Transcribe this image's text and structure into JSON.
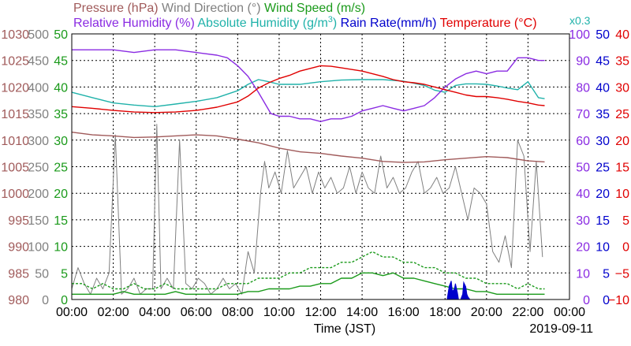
{
  "chart_data": {
    "type": "line",
    "title": {
      "parts": [
        {
          "text": "Pressure (hPa)",
          "color": "#a05a5a"
        },
        {
          "text": "Wind Direction (°)",
          "color": "#808080"
        },
        {
          "text": "Wind Speed (m/s)",
          "color": "#1a9a1a"
        }
      ],
      "parts2": [
        {
          "text": "Relative Humidity (%)",
          "color": "#8a2be2"
        },
        {
          "text": "Absolute Humidity (g/m",
          "color": "#20b2aa"
        },
        {
          "text": "3",
          "color": "#20b2aa",
          "sup": true
        },
        {
          "text": ")",
          "color": "#20b2aa"
        },
        {
          "text": "Rain Rate(mm/h)",
          "color": "#0000cc"
        },
        {
          "text": "Temperature (°C)",
          "color": "#e00000"
        }
      ],
      "multiplier": "x0.3",
      "multiplier_color": "#20b2aa"
    },
    "xlabel": "Time (JST)",
    "date": "2019-09-11",
    "x_ticks": [
      "00:00",
      "02:00",
      "04:00",
      "06:00",
      "08:00",
      "10:00",
      "12:00",
      "14:00",
      "16:00",
      "18:00",
      "20:00",
      "22:00",
      "00:00"
    ],
    "xlim": [
      0,
      24
    ],
    "grid": true,
    "left_axes": [
      {
        "name": "pressure",
        "color": "#a05a5a",
        "ticks": [
          "980",
          "985",
          "990",
          "995",
          "1000",
          "1005",
          "1010",
          "1015",
          "1020",
          "1025",
          "1030"
        ]
      },
      {
        "name": "wind_direction",
        "color": "#808080",
        "ticks": [
          "0",
          "50",
          "100",
          "150",
          "200",
          "250",
          "300",
          "350",
          "400",
          "450",
          "500"
        ]
      },
      {
        "name": "wind_speed",
        "color": "#1a9a1a",
        "ticks": [
          "0",
          "5",
          "10",
          "15",
          "20",
          "25",
          "30",
          "35",
          "40",
          "45",
          "50"
        ]
      }
    ],
    "right_axes": [
      {
        "name": "relative_humidity",
        "color": "#8a2be2",
        "ticks": [
          "0",
          "10",
          "20",
          "30",
          "40",
          "50",
          "60",
          "70",
          "80",
          "90",
          "100"
        ]
      },
      {
        "name": "rain_rate",
        "color": "#0000cc",
        "ticks": [
          "0",
          "5",
          "10",
          "15",
          "20",
          "25",
          "30",
          "35",
          "40",
          "45",
          "50"
        ]
      },
      {
        "name": "temperature",
        "color": "#e00000",
        "ticks": [
          "−10",
          "−5",
          "0",
          "5",
          "10",
          "15",
          "20",
          "25",
          "30",
          "35",
          "40"
        ]
      }
    ],
    "series": [
      {
        "name": "Pressure (hPa)",
        "color": "#a05a5a",
        "axis": "pressure",
        "ylim": [
          980,
          1030
        ],
        "x": [
          0,
          1,
          2,
          3,
          4,
          5,
          6,
          7,
          8,
          9,
          10,
          11,
          12,
          13,
          14,
          15,
          16,
          17,
          18,
          19,
          20,
          21,
          22,
          22.8
        ],
        "y": [
          1011.5,
          1011,
          1010.8,
          1010.5,
          1010.6,
          1010.8,
          1011,
          1010.8,
          1010.2,
          1009.5,
          1008.5,
          1007.8,
          1007.5,
          1007,
          1006.6,
          1006,
          1005.8,
          1005.9,
          1006.3,
          1006.6,
          1006.9,
          1006.7,
          1006.1,
          1005.9
        ]
      },
      {
        "name": "Wind Direction (°)",
        "color": "#808080",
        "axis": "wind_direction",
        "ylim": [
          0,
          500
        ],
        "x": [
          0,
          0.3,
          0.6,
          0.9,
          1.2,
          1.5,
          1.8,
          2.1,
          2.4,
          2.7,
          3.0,
          3.3,
          3.6,
          3.9,
          4.1,
          4.3,
          4.6,
          4.9,
          5.2,
          5.5,
          5.8,
          6.1,
          6.4,
          6.7,
          7.0,
          7.3,
          7.6,
          7.9,
          8.2,
          8.5,
          8.8,
          9.1,
          9.3,
          9.5,
          9.8,
          10.1,
          10.4,
          10.7,
          11.0,
          11.3,
          11.6,
          11.9,
          12.2,
          12.5,
          12.8,
          13.1,
          13.4,
          13.7,
          14.0,
          14.3,
          14.6,
          14.9,
          15.2,
          15.5,
          15.8,
          16.1,
          16.4,
          16.7,
          17.0,
          17.3,
          17.6,
          17.9,
          18.2,
          18.5,
          18.8,
          19.1,
          19.4,
          19.7,
          20.0,
          20.3,
          20.6,
          20.9,
          21.2,
          21.5,
          21.8,
          22.1,
          22.4,
          22.7
        ],
        "y": [
          20,
          60,
          30,
          10,
          40,
          20,
          50,
          310,
          10,
          20,
          40,
          10,
          20,
          20,
          330,
          20,
          40,
          20,
          300,
          30,
          20,
          40,
          30,
          10,
          20,
          40,
          20,
          30,
          10,
          90,
          50,
          200,
          260,
          210,
          240,
          200,
          280,
          210,
          230,
          250,
          200,
          240,
          210,
          230,
          200,
          210,
          250,
          200,
          240,
          210,
          200,
          270,
          210,
          230,
          200,
          210,
          240,
          260,
          200,
          210,
          230,
          200,
          210,
          250,
          200,
          150,
          210,
          200,
          180,
          90,
          70,
          120,
          60,
          300,
          270,
          90,
          260,
          80
        ]
      },
      {
        "name": "Wind Speed (m/s)",
        "color": "#1a9a1a",
        "axis": "wind_speed",
        "ylim": [
          0,
          50
        ],
        "x": [
          0,
          0.5,
          1,
          1.5,
          2,
          2.5,
          3,
          3.5,
          4,
          4.5,
          5,
          5.5,
          6,
          6.5,
          7,
          7.5,
          8,
          8.5,
          9,
          9.5,
          10,
          10.5,
          11,
          11.5,
          12,
          12.5,
          13,
          13.5,
          14,
          14.5,
          15,
          15.5,
          16,
          16.5,
          17,
          17.5,
          18,
          18.5,
          19,
          19.5,
          20,
          20.5,
          21,
          21.5,
          22,
          22.5,
          22.8
        ],
        "y": [
          1,
          1,
          1,
          1,
          1,
          1.5,
          1,
          1,
          1,
          1,
          1.5,
          1,
          1,
          1,
          1,
          1,
          1,
          1.5,
          1.5,
          2,
          2,
          2,
          2.5,
          2.5,
          3,
          3,
          4,
          4,
          5,
          5,
          4.5,
          5,
          4,
          4,
          3.5,
          3,
          2.5,
          2,
          2,
          1.5,
          1.5,
          1,
          1,
          1,
          1,
          1,
          1
        ]
      },
      {
        "name": "Wind Speed gust",
        "color": "#1a9a1a",
        "dashed": true,
        "axis": "wind_speed",
        "ylim": [
          0,
          50
        ],
        "x": [
          0,
          0.5,
          1,
          1.5,
          2,
          2.5,
          3,
          3.5,
          4,
          4.5,
          5,
          5.5,
          6,
          6.5,
          7,
          7.5,
          8,
          8.5,
          9,
          9.5,
          10,
          10.5,
          11,
          11.5,
          12,
          12.5,
          13,
          13.5,
          14,
          14.5,
          15,
          15.5,
          16,
          16.5,
          17,
          17.5,
          18,
          18.5,
          19,
          19.5,
          20,
          20.5,
          21,
          21.5,
          22,
          22.5,
          22.8
        ],
        "y": [
          3,
          3,
          2,
          3,
          2,
          2,
          3,
          2,
          2,
          3,
          2,
          2,
          2,
          2,
          2,
          3,
          3,
          3,
          4,
          4,
          4,
          5,
          5,
          6,
          6,
          6,
          7,
          7,
          8,
          9,
          8,
          8,
          7,
          7,
          6,
          6,
          5,
          5,
          4,
          4,
          3,
          3,
          3,
          2,
          3,
          2,
          2
        ]
      },
      {
        "name": "Relative Humidity (%)",
        "color": "#8a2be2",
        "axis": "relative_humidity",
        "ylim": [
          0,
          100
        ],
        "x": [
          0,
          1,
          2,
          3,
          4,
          5,
          6,
          7,
          7.5,
          8,
          8.5,
          9,
          9.3,
          9.6,
          10,
          10.5,
          11,
          11.5,
          12,
          12.5,
          13,
          13.5,
          14,
          14.5,
          15,
          15.5,
          16,
          16.5,
          17,
          17.5,
          18,
          18.5,
          19,
          19.5,
          20,
          20.5,
          21,
          21.5,
          22,
          22.5,
          22.8
        ],
        "y": [
          94,
          94,
          94,
          93,
          94,
          94,
          93,
          92,
          91,
          88,
          84,
          78,
          74,
          70,
          69,
          69,
          68,
          68,
          67,
          68,
          68,
          69,
          71,
          72,
          73,
          72,
          71,
          72,
          73,
          76,
          80,
          83,
          85,
          86,
          85,
          86,
          86,
          91,
          91,
          90,
          90
        ]
      },
      {
        "name": "Absolute Humidity (g/m3)",
        "color": "#20b2aa",
        "axis": "abs_humidity_scaled",
        "ylim": [
          980,
          1030
        ],
        "x": [
          0,
          1,
          2,
          3,
          4,
          5,
          6,
          7,
          8,
          8.5,
          9,
          9.5,
          10,
          11,
          12,
          13,
          14,
          15,
          16,
          17,
          17.5,
          18,
          18.5,
          19,
          19.5,
          20,
          20.5,
          21,
          21.5,
          22,
          22.5,
          22.8
        ],
        "y": [
          1019,
          1018,
          1017,
          1016.6,
          1016.3,
          1016.8,
          1017.3,
          1018,
          1019.3,
          1020.5,
          1021.4,
          1021,
          1020.5,
          1020.5,
          1021,
          1021.3,
          1021.4,
          1021.4,
          1021.1,
          1020.3,
          1019.4,
          1019,
          1020.3,
          1020.6,
          1020.6,
          1020.5,
          1020.2,
          1019.8,
          1019.5,
          1021,
          1018,
          1017.8
        ]
      },
      {
        "name": "Temperature (°C)",
        "color": "#e00000",
        "axis": "temperature",
        "ylim": [
          -10,
          40
        ],
        "x": [
          0,
          1,
          2,
          3,
          4,
          5,
          6,
          7,
          8,
          8.5,
          9,
          9.5,
          10,
          10.5,
          11,
          11.5,
          12,
          12.5,
          13,
          14,
          15,
          15.5,
          16,
          16.5,
          17,
          17.5,
          18,
          18.5,
          19,
          19.5,
          20,
          20.5,
          21,
          21.5,
          22,
          22.5,
          22.8
        ],
        "y": [
          26.3,
          26,
          25.6,
          25.3,
          25.2,
          25.3,
          25.6,
          26.2,
          27.2,
          28.3,
          29.8,
          30.8,
          31.6,
          32.2,
          33,
          33.5,
          34,
          33.9,
          33.6,
          33,
          32,
          31.4,
          31,
          30.8,
          30.5,
          30,
          29.5,
          29,
          28.5,
          28.2,
          28.2,
          28,
          27.7,
          27.3,
          27,
          26.6,
          26.5
        ]
      },
      {
        "name": "Rain Rate(mm/h)",
        "color": "#0000cc",
        "axis": "rain_rate",
        "ylim": [
          0,
          50
        ],
        "fill": true,
        "x": [
          18.1,
          18.2,
          18.3,
          18.35,
          18.45,
          18.5,
          18.6,
          18.65,
          18.75,
          18.85,
          18.9,
          19.0,
          19.05,
          19.1,
          19.2
        ],
        "y": [
          0,
          2.5,
          3.5,
          1.5,
          2,
          3,
          1.2,
          0,
          0,
          1,
          3.2,
          2.4,
          1,
          0.5,
          0
        ]
      }
    ]
  }
}
